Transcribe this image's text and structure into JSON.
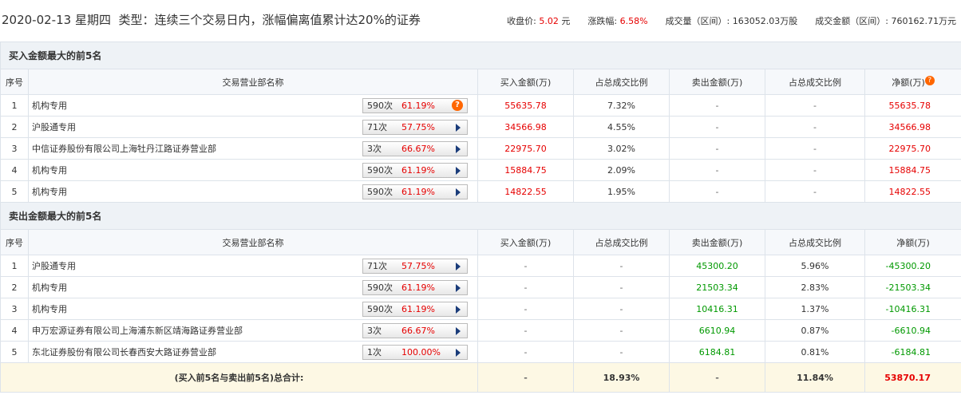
{
  "header": {
    "date": "2020-02-13 星期四",
    "type": "类型：连续三个交易日内，涨幅偏离值累计达20%的证券",
    "stats": [
      {
        "label": "收盘价:",
        "value": "5.02",
        "unit": "元"
      },
      {
        "label": "涨跌幅:",
        "value": "6.58%"
      },
      {
        "label": "成交量（区间）:",
        "value": "163052.03万股"
      },
      {
        "label": "成交金额（区间）:",
        "value": "760162.71万元"
      }
    ]
  },
  "columns": [
    "序号",
    "交易营业部名称",
    "买入金额(万)",
    "占总成交比例",
    "卖出金额(万)",
    "占总成交比例",
    "净额(万)"
  ],
  "buy": {
    "title": "买入金额最大的前5名",
    "rows": [
      {
        "rank": "1",
        "name": "机构专用",
        "count": "590次",
        "rate": "61.19%",
        "buy": "55635.78",
        "buy_ratio": "7.32%",
        "sell": "-",
        "sell_ratio": "-",
        "net": "55635.78"
      },
      {
        "rank": "2",
        "name": "沪股通专用",
        "count": "71次",
        "rate": "57.75%",
        "buy": "34566.98",
        "buy_ratio": "4.55%",
        "sell": "-",
        "sell_ratio": "-",
        "net": "34566.98"
      },
      {
        "rank": "3",
        "name": "中信证券股份有限公司上海牡丹江路证券营业部",
        "count": "3次",
        "rate": "66.67%",
        "buy": "22975.70",
        "buy_ratio": "3.02%",
        "sell": "-",
        "sell_ratio": "-",
        "net": "22975.70"
      },
      {
        "rank": "4",
        "name": "机构专用",
        "count": "590次",
        "rate": "61.19%",
        "buy": "15884.75",
        "buy_ratio": "2.09%",
        "sell": "-",
        "sell_ratio": "-",
        "net": "15884.75"
      },
      {
        "rank": "5",
        "name": "机构专用",
        "count": "590次",
        "rate": "61.19%",
        "buy": "14822.55",
        "buy_ratio": "1.95%",
        "sell": "-",
        "sell_ratio": "-",
        "net": "14822.55"
      }
    ]
  },
  "sell": {
    "title": "卖出金额最大的前5名",
    "rows": [
      {
        "rank": "1",
        "name": "沪股通专用",
        "count": "71次",
        "rate": "57.75%",
        "buy": "-",
        "buy_ratio": "-",
        "sell": "45300.20",
        "sell_ratio": "5.96%",
        "net": "-45300.20"
      },
      {
        "rank": "2",
        "name": "机构专用",
        "count": "590次",
        "rate": "61.19%",
        "buy": "-",
        "buy_ratio": "-",
        "sell": "21503.34",
        "sell_ratio": "2.83%",
        "net": "-21503.34"
      },
      {
        "rank": "3",
        "name": "机构专用",
        "count": "590次",
        "rate": "61.19%",
        "buy": "-",
        "buy_ratio": "-",
        "sell": "10416.31",
        "sell_ratio": "1.37%",
        "net": "-10416.31"
      },
      {
        "rank": "4",
        "name": "申万宏源证券有限公司上海浦东新区靖海路证券营业部",
        "count": "3次",
        "rate": "66.67%",
        "buy": "-",
        "buy_ratio": "-",
        "sell": "6610.94",
        "sell_ratio": "0.87%",
        "net": "-6610.94"
      },
      {
        "rank": "5",
        "name": "东北证券股份有限公司长春西安大路证券营业部",
        "count": "1次",
        "rate": "100.00%",
        "buy": "-",
        "buy_ratio": "-",
        "sell": "6184.81",
        "sell_ratio": "0.81%",
        "net": "-6184.81"
      }
    ]
  },
  "total": {
    "label": "(买入前5名与卖出前5名)总合计:",
    "buy": "-",
    "buy_ratio": "18.93%",
    "sell": "-",
    "sell_ratio": "11.84%",
    "net": "53870.17"
  }
}
